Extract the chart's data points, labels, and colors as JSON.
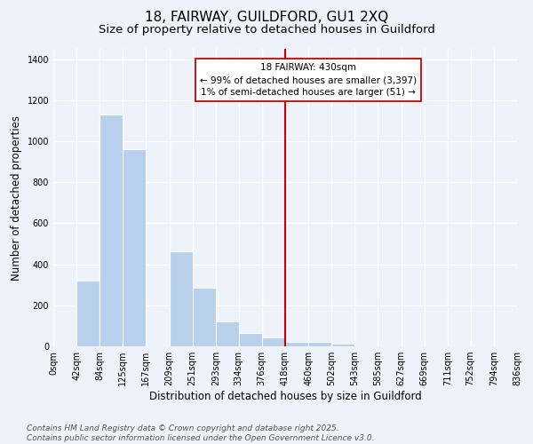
{
  "title": "18, FAIRWAY, GUILDFORD, GU1 2XQ",
  "subtitle": "Size of property relative to detached houses in Guildford",
  "xlabel": "Distribution of detached houses by size in Guildford",
  "ylabel": "Number of detached properties",
  "bar_edges": [
    0,
    42,
    84,
    125,
    167,
    209,
    251,
    293,
    334,
    376,
    418,
    460,
    502,
    543,
    585,
    627,
    669,
    711,
    752,
    794,
    836
  ],
  "bar_heights": [
    0,
    322,
    1130,
    962,
    0,
    464,
    284,
    122,
    67,
    44,
    20,
    20,
    15,
    0,
    0,
    0,
    0,
    0,
    0,
    0
  ],
  "bar_color": "#b8d0eb",
  "vline_x": 418,
  "vline_color": "#cc0000",
  "annotation_title": "18 FAIRWAY: 430sqm",
  "annotation_line1": "← 99% of detached houses are smaller (3,397)",
  "annotation_line2": "1% of semi-detached houses are larger (51) →",
  "annotation_box_color": "#ffffff",
  "annotation_border_color": "#cc0000",
  "tick_labels": [
    "0sqm",
    "42sqm",
    "84sqm",
    "125sqm",
    "167sqm",
    "209sqm",
    "251sqm",
    "293sqm",
    "334sqm",
    "376sqm",
    "418sqm",
    "460sqm",
    "502sqm",
    "543sqm",
    "585sqm",
    "627sqm",
    "669sqm",
    "711sqm",
    "752sqm",
    "794sqm",
    "836sqm"
  ],
  "ylim": [
    0,
    1450
  ],
  "yticks": [
    0,
    200,
    400,
    600,
    800,
    1000,
    1200,
    1400
  ],
  "footnote1": "Contains HM Land Registry data © Crown copyright and database right 2025.",
  "footnote2": "Contains public sector information licensed under the Open Government Licence v3.0.",
  "bg_color": "#eef2fb",
  "grid_color": "#ffffff",
  "title_fontsize": 11,
  "subtitle_fontsize": 9.5,
  "axis_label_fontsize": 8.5,
  "tick_fontsize": 7,
  "footnote_fontsize": 6.5,
  "ann_fontsize": 7.5
}
